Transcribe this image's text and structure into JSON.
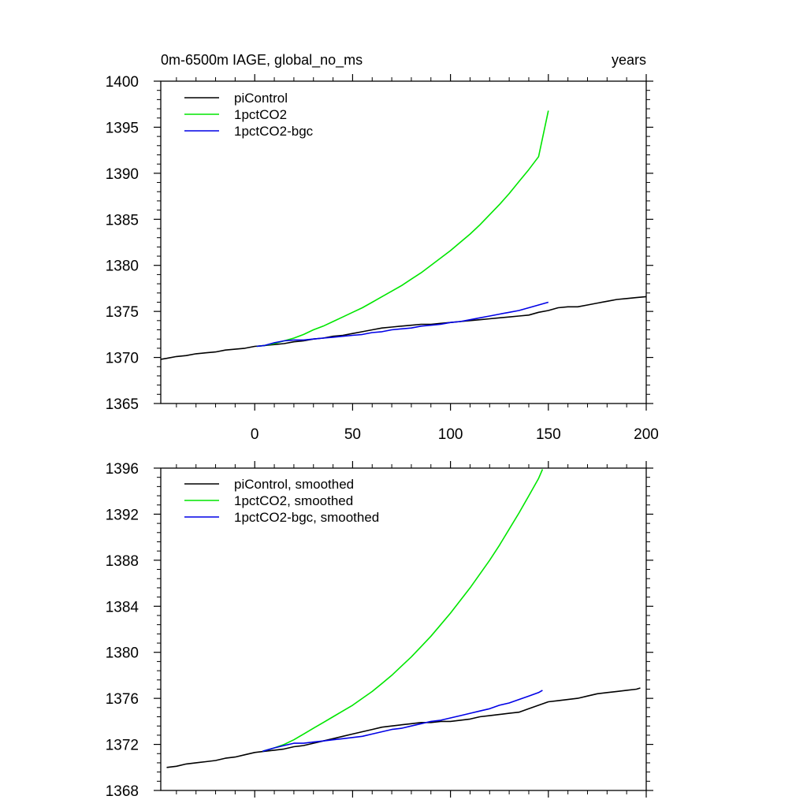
{
  "chart_data": [
    {
      "type": "line",
      "title": "0m-6500m IAGE, global_no_ms",
      "right_title": "years",
      "xlim": [
        -48,
        200
      ],
      "ylim": [
        1365,
        1400
      ],
      "y_ticks": [
        1365,
        1370,
        1375,
        1380,
        1385,
        1390,
        1395,
        1400
      ],
      "x_ticks": [
        0,
        50,
        100,
        150,
        200
      ],
      "x_tick_labels": [
        "0",
        "50",
        "100",
        "150",
        "200"
      ],
      "legend_position": "top-left",
      "series": [
        {
          "name": "piControl",
          "color": "#000000",
          "points": [
            [
              -48,
              1369.8
            ],
            [
              -45,
              1369.9
            ],
            [
              -40,
              1370.1
            ],
            [
              -35,
              1370.2
            ],
            [
              -30,
              1370.4
            ],
            [
              -25,
              1370.5
            ],
            [
              -20,
              1370.6
            ],
            [
              -15,
              1370.8
            ],
            [
              -10,
              1370.9
            ],
            [
              -5,
              1371.0
            ],
            [
              0,
              1371.2
            ],
            [
              5,
              1371.3
            ],
            [
              10,
              1371.4
            ],
            [
              15,
              1371.5
            ],
            [
              20,
              1371.7
            ],
            [
              25,
              1371.8
            ],
            [
              30,
              1372.0
            ],
            [
              35,
              1372.1
            ],
            [
              40,
              1372.3
            ],
            [
              45,
              1372.4
            ],
            [
              50,
              1372.6
            ],
            [
              55,
              1372.8
            ],
            [
              60,
              1373.0
            ],
            [
              65,
              1373.2
            ],
            [
              70,
              1373.3
            ],
            [
              75,
              1373.4
            ],
            [
              80,
              1373.5
            ],
            [
              85,
              1373.6
            ],
            [
              90,
              1373.6
            ],
            [
              95,
              1373.7
            ],
            [
              100,
              1373.8
            ],
            [
              105,
              1373.9
            ],
            [
              110,
              1374.0
            ],
            [
              115,
              1374.1
            ],
            [
              120,
              1374.2
            ],
            [
              125,
              1374.3
            ],
            [
              130,
              1374.4
            ],
            [
              135,
              1374.5
            ],
            [
              140,
              1374.6
            ],
            [
              145,
              1374.9
            ],
            [
              150,
              1375.1
            ],
            [
              155,
              1375.4
            ],
            [
              160,
              1375.5
            ],
            [
              165,
              1375.5
            ],
            [
              170,
              1375.7
            ],
            [
              175,
              1375.9
            ],
            [
              180,
              1376.1
            ],
            [
              185,
              1376.3
            ],
            [
              190,
              1376.4
            ],
            [
              195,
              1376.5
            ],
            [
              200,
              1376.6
            ]
          ]
        },
        {
          "name": "1pctCO2",
          "color": "#00e600",
          "points": [
            [
              1,
              1371.2
            ],
            [
              5,
              1371.3
            ],
            [
              10,
              1371.5
            ],
            [
              15,
              1371.8
            ],
            [
              20,
              1372.1
            ],
            [
              25,
              1372.5
            ],
            [
              30,
              1373.0
            ],
            [
              35,
              1373.4
            ],
            [
              40,
              1373.9
            ],
            [
              45,
              1374.4
            ],
            [
              50,
              1374.9
            ],
            [
              55,
              1375.4
            ],
            [
              60,
              1376.0
            ],
            [
              65,
              1376.6
            ],
            [
              70,
              1377.2
            ],
            [
              75,
              1377.8
            ],
            [
              80,
              1378.5
            ],
            [
              85,
              1379.2
            ],
            [
              90,
              1380.0
            ],
            [
              95,
              1380.8
            ],
            [
              100,
              1381.6
            ],
            [
              105,
              1382.5
            ],
            [
              110,
              1383.4
            ],
            [
              115,
              1384.4
            ],
            [
              120,
              1385.5
            ],
            [
              125,
              1386.6
            ],
            [
              130,
              1387.8
            ],
            [
              135,
              1389.1
            ],
            [
              140,
              1390.4
            ],
            [
              145,
              1391.8
            ],
            [
              150,
              1396.8
            ]
          ]
        },
        {
          "name": "1pctCO2-bgc",
          "color": "#0000e6",
          "points": [
            [
              1,
              1371.2
            ],
            [
              5,
              1371.3
            ],
            [
              10,
              1371.6
            ],
            [
              15,
              1371.8
            ],
            [
              20,
              1371.9
            ],
            [
              25,
              1371.9
            ],
            [
              30,
              1372.0
            ],
            [
              35,
              1372.1
            ],
            [
              40,
              1372.2
            ],
            [
              45,
              1372.3
            ],
            [
              50,
              1372.4
            ],
            [
              55,
              1372.5
            ],
            [
              60,
              1372.7
            ],
            [
              65,
              1372.8
            ],
            [
              70,
              1373.0
            ],
            [
              75,
              1373.1
            ],
            [
              80,
              1373.2
            ],
            [
              85,
              1373.4
            ],
            [
              90,
              1373.5
            ],
            [
              95,
              1373.6
            ],
            [
              100,
              1373.8
            ],
            [
              105,
              1373.9
            ],
            [
              110,
              1374.1
            ],
            [
              115,
              1374.3
            ],
            [
              120,
              1374.5
            ],
            [
              125,
              1374.7
            ],
            [
              130,
              1374.9
            ],
            [
              135,
              1375.1
            ],
            [
              140,
              1375.4
            ],
            [
              145,
              1375.7
            ],
            [
              150,
              1376.0
            ]
          ]
        }
      ]
    },
    {
      "type": "line",
      "title": "",
      "xlim": [
        -48,
        200
      ],
      "ylim": [
        1368,
        1396
      ],
      "y_ticks": [
        1368,
        1372,
        1376,
        1380,
        1384,
        1388,
        1392,
        1396
      ],
      "x_ticks": [
        0,
        50,
        100,
        150,
        200
      ],
      "legend_position": "top-left",
      "series": [
        {
          "name": "piControl, smoothed",
          "color": "#000000",
          "points": [
            [
              -45,
              1370.0
            ],
            [
              -40,
              1370.1
            ],
            [
              -35,
              1370.3
            ],
            [
              -30,
              1370.4
            ],
            [
              -25,
              1370.5
            ],
            [
              -20,
              1370.6
            ],
            [
              -15,
              1370.8
            ],
            [
              -10,
              1370.9
            ],
            [
              -5,
              1371.1
            ],
            [
              0,
              1371.3
            ],
            [
              5,
              1371.4
            ],
            [
              10,
              1371.5
            ],
            [
              15,
              1371.6
            ],
            [
              20,
              1371.8
            ],
            [
              25,
              1371.9
            ],
            [
              30,
              1372.1
            ],
            [
              35,
              1372.3
            ],
            [
              40,
              1372.5
            ],
            [
              45,
              1372.7
            ],
            [
              50,
              1372.9
            ],
            [
              55,
              1373.1
            ],
            [
              60,
              1373.3
            ],
            [
              65,
              1373.5
            ],
            [
              70,
              1373.6
            ],
            [
              75,
              1373.7
            ],
            [
              80,
              1373.8
            ],
            [
              85,
              1373.9
            ],
            [
              90,
              1373.9
            ],
            [
              95,
              1374.0
            ],
            [
              100,
              1374.0
            ],
            [
              105,
              1374.1
            ],
            [
              110,
              1374.2
            ],
            [
              115,
              1374.4
            ],
            [
              120,
              1374.5
            ],
            [
              125,
              1374.6
            ],
            [
              130,
              1374.7
            ],
            [
              135,
              1374.8
            ],
            [
              140,
              1375.1
            ],
            [
              145,
              1375.4
            ],
            [
              150,
              1375.7
            ],
            [
              155,
              1375.8
            ],
            [
              160,
              1375.9
            ],
            [
              165,
              1376.0
            ],
            [
              170,
              1376.2
            ],
            [
              175,
              1376.4
            ],
            [
              180,
              1376.5
            ],
            [
              185,
              1376.6
            ],
            [
              190,
              1376.7
            ],
            [
              195,
              1376.8
            ],
            [
              197,
              1376.9
            ]
          ]
        },
        {
          "name": "1pctCO2, smoothed",
          "color": "#00e600",
          "points": [
            [
              4,
              1371.4
            ],
            [
              10,
              1371.7
            ],
            [
              15,
              1372.0
            ],
            [
              20,
              1372.4
            ],
            [
              25,
              1372.9
            ],
            [
              30,
              1373.4
            ],
            [
              35,
              1373.9
            ],
            [
              40,
              1374.4
            ],
            [
              45,
              1374.9
            ],
            [
              50,
              1375.4
            ],
            [
              55,
              1376.0
            ],
            [
              60,
              1376.6
            ],
            [
              65,
              1377.3
            ],
            [
              70,
              1378.0
            ],
            [
              75,
              1378.8
            ],
            [
              80,
              1379.6
            ],
            [
              85,
              1380.5
            ],
            [
              90,
              1381.4
            ],
            [
              95,
              1382.4
            ],
            [
              100,
              1383.4
            ],
            [
              105,
              1384.5
            ],
            [
              110,
              1385.6
            ],
            [
              115,
              1386.8
            ],
            [
              120,
              1388.0
            ],
            [
              125,
              1389.3
            ],
            [
              130,
              1390.7
            ],
            [
              135,
              1392.1
            ],
            [
              140,
              1393.6
            ],
            [
              145,
              1395.1
            ],
            [
              147,
              1395.9
            ]
          ]
        },
        {
          "name": "1pctCO2-bgc, smoothed",
          "color": "#0000e6",
          "points": [
            [
              4,
              1371.4
            ],
            [
              10,
              1371.7
            ],
            [
              15,
              1371.9
            ],
            [
              20,
              1372.1
            ],
            [
              25,
              1372.1
            ],
            [
              30,
              1372.2
            ],
            [
              35,
              1372.3
            ],
            [
              40,
              1372.4
            ],
            [
              45,
              1372.5
            ],
            [
              50,
              1372.6
            ],
            [
              55,
              1372.7
            ],
            [
              60,
              1372.9
            ],
            [
              65,
              1373.1
            ],
            [
              70,
              1373.3
            ],
            [
              75,
              1373.4
            ],
            [
              80,
              1373.6
            ],
            [
              85,
              1373.8
            ],
            [
              90,
              1374.0
            ],
            [
              95,
              1374.1
            ],
            [
              100,
              1374.3
            ],
            [
              105,
              1374.5
            ],
            [
              110,
              1374.7
            ],
            [
              115,
              1374.9
            ],
            [
              120,
              1375.1
            ],
            [
              125,
              1375.4
            ],
            [
              130,
              1375.6
            ],
            [
              135,
              1375.9
            ],
            [
              140,
              1376.2
            ],
            [
              145,
              1376.5
            ],
            [
              147,
              1376.7
            ]
          ]
        }
      ]
    }
  ]
}
